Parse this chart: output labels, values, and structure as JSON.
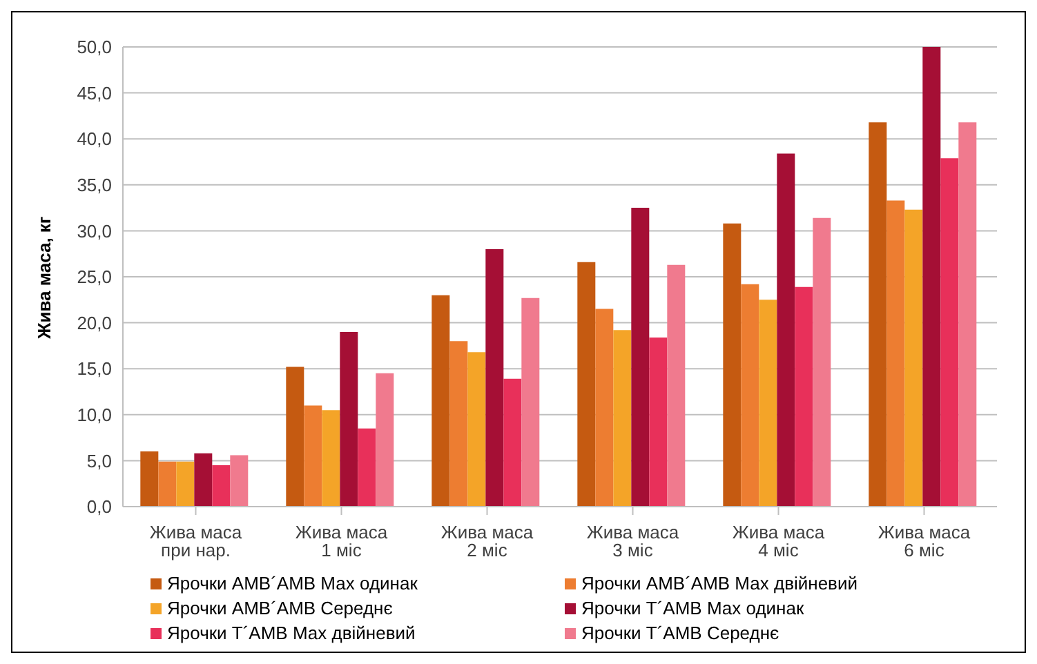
{
  "chart_data": {
    "type": "bar",
    "ylabel": "Жива маса, кг",
    "categories": [
      "Жива маса при нар.",
      "Жива маса 1 міс",
      "Жива маса 2 міс",
      "Жива маса 3 міс",
      "Жива маса 4 міс",
      "Жива маса 6 міс"
    ],
    "series": [
      {
        "name": "Ярочки АМВ´АМВ Мах одинак",
        "color": "#c55a11",
        "values": [
          6.0,
          15.2,
          23.0,
          26.6,
          30.8,
          41.8
        ]
      },
      {
        "name": "Ярочки АМВ´АМВ Мах двійневий",
        "color": "#ed7d31",
        "values": [
          4.9,
          11.0,
          18.0,
          21.5,
          24.2,
          33.3
        ]
      },
      {
        "name": "Ярочки АМВ´АМВ Середнє",
        "color": "#f4a428",
        "values": [
          4.9,
          10.5,
          16.8,
          19.2,
          22.5,
          32.3
        ]
      },
      {
        "name": "Ярочки Т´АМВ Мах одинак",
        "color": "#a50f35",
        "values": [
          5.8,
          19.0,
          28.0,
          32.5,
          38.4,
          50.0
        ]
      },
      {
        "name": "Ярочки Т´АМВ Мах двійневий",
        "color": "#e8305a",
        "values": [
          4.5,
          8.5,
          13.9,
          18.4,
          23.9,
          37.9
        ]
      },
      {
        "name": "Ярочки Т´АМВ Середнє",
        "color": "#f07a8e",
        "values": [
          5.6,
          14.5,
          22.7,
          26.3,
          31.4,
          41.8
        ]
      }
    ],
    "ylim": [
      0,
      50
    ],
    "yticks": [
      {
        "value": 0,
        "label": "0,0"
      },
      {
        "value": 5,
        "label": "5,0"
      },
      {
        "value": 10,
        "label": "10,0"
      },
      {
        "value": 15,
        "label": "15,0"
      },
      {
        "value": 20,
        "label": "20,0"
      },
      {
        "value": 25,
        "label": "25,0"
      },
      {
        "value": 30,
        "label": "30,0"
      },
      {
        "value": 35,
        "label": "35,0"
      },
      {
        "value": 40,
        "label": "40,0"
      },
      {
        "value": 45,
        "label": "45,0"
      },
      {
        "value": 50,
        "label": "50,0"
      }
    ],
    "grid": "y",
    "legend": "bottom"
  }
}
